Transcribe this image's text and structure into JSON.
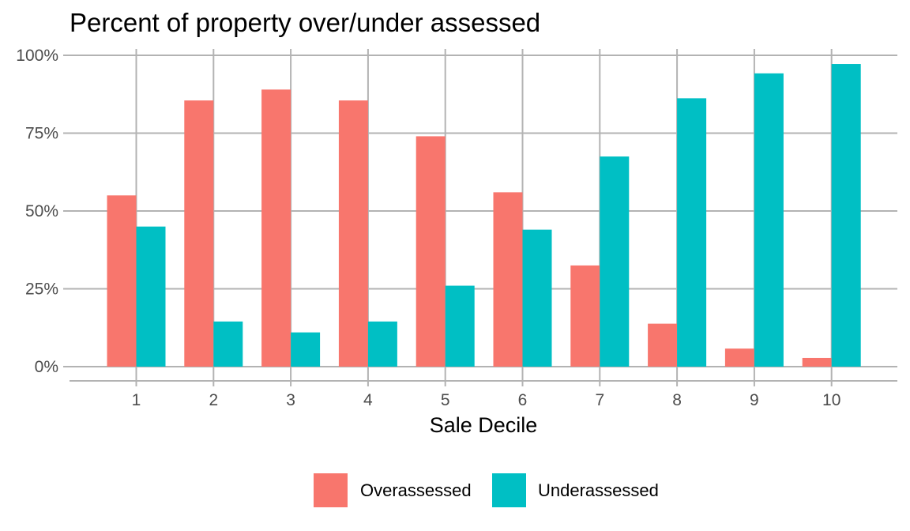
{
  "chart_data": {
    "type": "bar",
    "title": "Percent of property over/under assessed",
    "xlabel": "Sale Decile",
    "ylabel": "",
    "categories": [
      "1",
      "2",
      "3",
      "4",
      "5",
      "6",
      "7",
      "8",
      "9",
      "10"
    ],
    "series": [
      {
        "name": "Overassessed",
        "color": "#F8766D",
        "values": [
          55,
          85.5,
          89,
          85.5,
          74,
          56,
          32.5,
          13.8,
          5.8,
          2.8
        ]
      },
      {
        "name": "Underassessed",
        "color": "#00BFC4",
        "values": [
          45,
          14.5,
          11,
          14.5,
          26,
          44,
          67.5,
          86.2,
          94.2,
          97.2
        ]
      }
    ],
    "yticks": [
      0,
      25,
      50,
      75,
      100
    ],
    "ytick_labels": [
      "0%",
      "25%",
      "50%",
      "75%",
      "100%"
    ],
    "ylim": [
      0,
      100
    ],
    "grid": true,
    "legend": {
      "position": "bottom"
    }
  }
}
